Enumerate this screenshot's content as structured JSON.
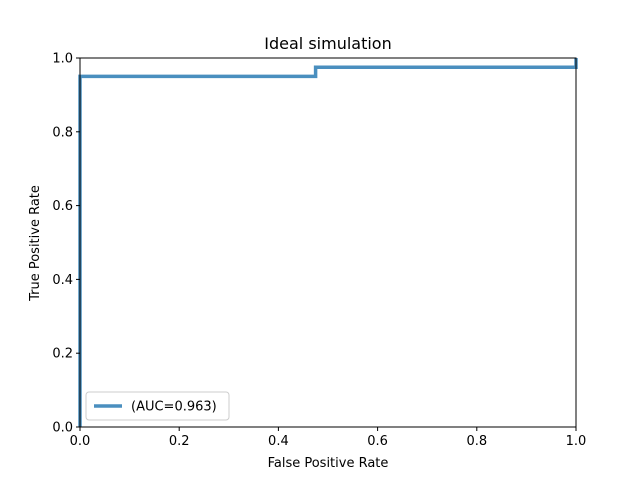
{
  "chart_data": {
    "type": "line",
    "title": "Ideal simulation",
    "xlabel": "False Positive Rate",
    "ylabel": "True Positive Rate",
    "xlim": [
      0.0,
      1.0
    ],
    "ylim": [
      0.0,
      1.0
    ],
    "xticks": [
      0.0,
      0.2,
      0.4,
      0.6,
      0.8,
      1.0
    ],
    "yticks": [
      0.0,
      0.2,
      0.4,
      0.6,
      0.8,
      1.0
    ],
    "xtick_labels": [
      "0.0",
      "0.2",
      "0.4",
      "0.6",
      "0.8",
      "1.0"
    ],
    "ytick_labels": [
      "0.0",
      "0.2",
      "0.4",
      "0.6",
      "0.8",
      "1.0"
    ],
    "grid": false,
    "legend_position": "lower-left",
    "series": [
      {
        "name": "(AUC=0.963)",
        "color": "#4a8fbf",
        "x": [
          0.0,
          0.0,
          0.475,
          0.475,
          1.0,
          1.0
        ],
        "y": [
          0.0,
          0.95,
          0.95,
          0.975,
          0.975,
          1.0
        ]
      }
    ]
  }
}
